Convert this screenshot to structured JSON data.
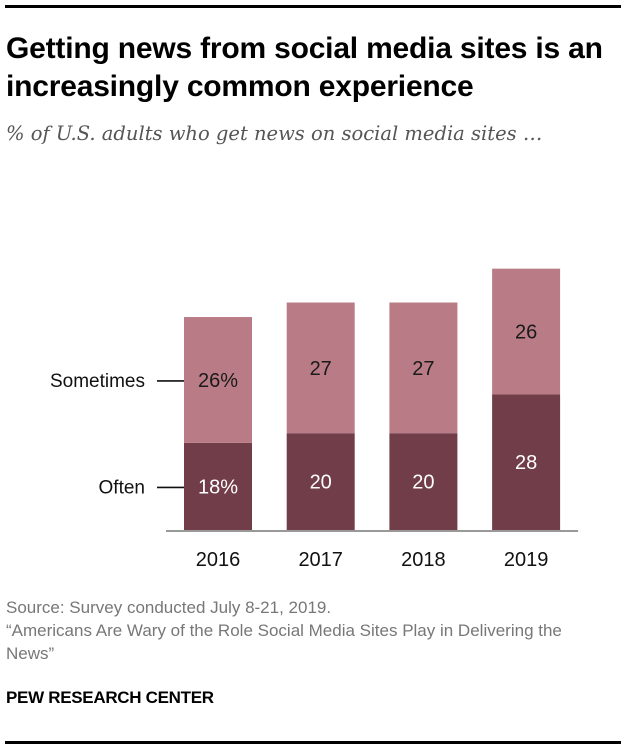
{
  "header": {
    "title": "Getting news from social media sites is an increasingly common experience",
    "subtitle": "% of U.S. adults who get news on social media sites …"
  },
  "footer": {
    "source": "Source: Survey conducted July 8-21, 2019.",
    "report": "“Americans Are Wary of the Role Social Media Sites Play in Delivering the News”",
    "brand": "PEW RESEARCH CENTER"
  },
  "chart_data": {
    "type": "bar",
    "stacked": true,
    "title": "Getting news from social media sites is an increasingly common experience",
    "subtitle": "% of U.S. adults who get news on social media sites …",
    "xlabel": "",
    "ylabel": "",
    "categories": [
      "2016",
      "2017",
      "2018",
      "2019"
    ],
    "series": [
      {
        "name": "Often",
        "values": [
          18,
          20,
          20,
          28
        ],
        "color": "#713d49",
        "label_color": "#ffffff",
        "labels": [
          "18%",
          "20",
          "20",
          "28"
        ]
      },
      {
        "name": "Sometimes",
        "values": [
          26,
          27,
          27,
          26
        ],
        "color": "#b97c86",
        "label_color": "#1a1a1a",
        "labels": [
          "26%",
          "27",
          "27",
          "26"
        ]
      }
    ],
    "legend": {
      "placement": "left",
      "style": "direct-labels-with-leader-lines"
    },
    "ylim": [
      0,
      60
    ],
    "grid": false,
    "axis_color": "#999999"
  }
}
